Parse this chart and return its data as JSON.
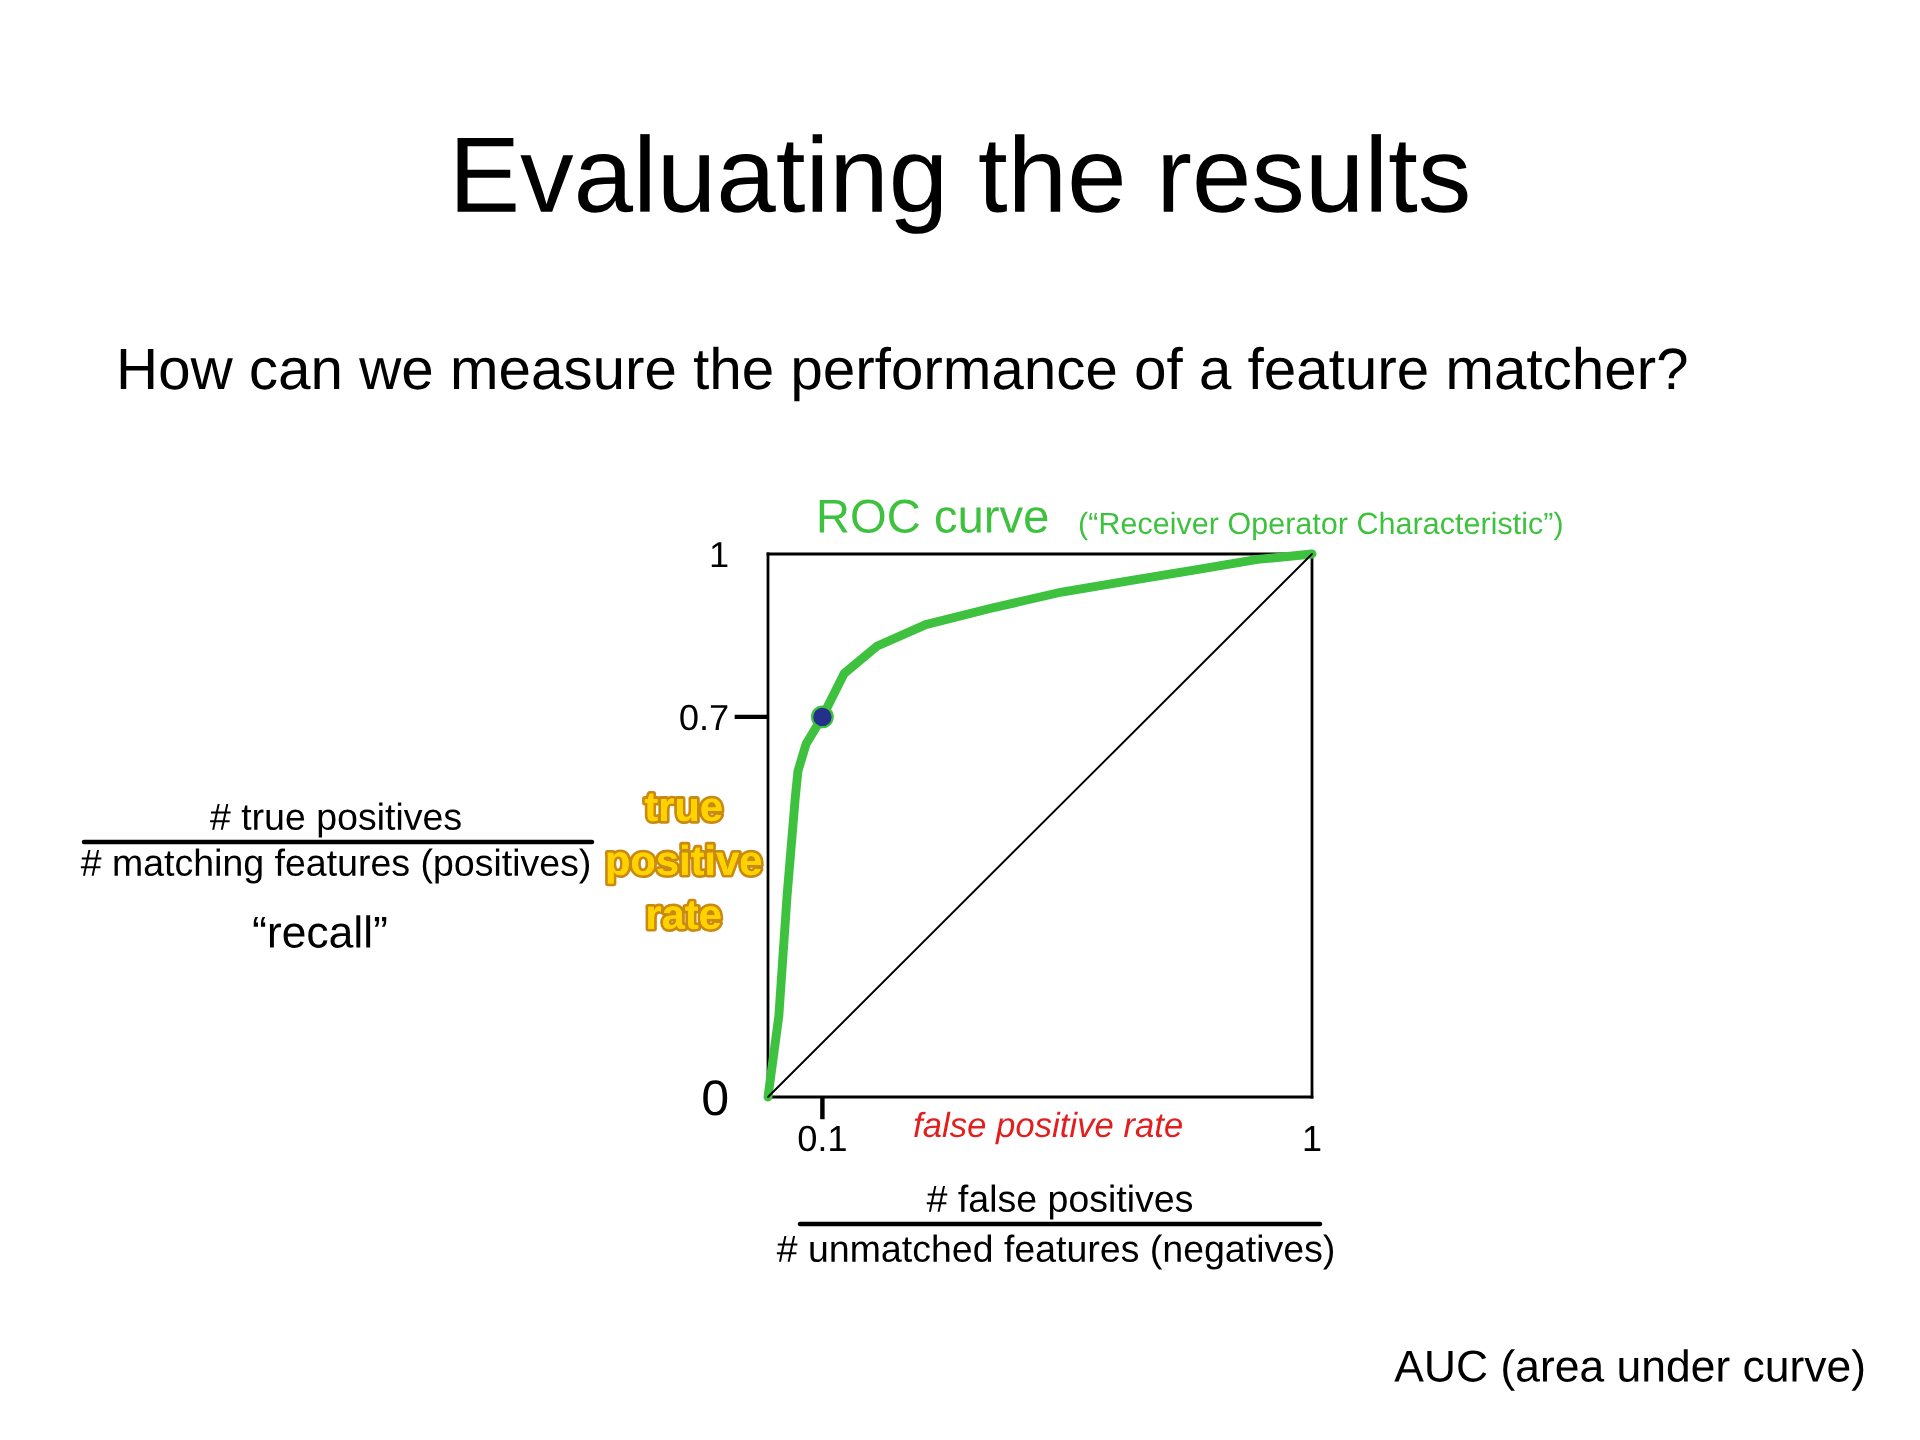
{
  "chart_data": {
    "type": "line",
    "title": "Evaluating the results",
    "subtitle": "How can we measure the performance of a feature matcher?",
    "xlabel": "false positive rate",
    "ylabel": "true positive rate",
    "annotations": [
      "(“Receiver Operator Characteristic”)",
      "# true positives",
      "# matching features (positives)",
      "“recall”",
      "# false positives",
      "# unmatched features (negatives)",
      "AUC (area under curve)"
    ],
    "series": [
      {
        "name": "ROC curve",
        "color": "#3ec13e",
        "x": [
          0,
          0.02,
          0.035,
          0.05,
          0.055,
          0.07,
          0.1,
          0.14,
          0.2,
          0.29,
          0.41,
          0.54,
          0.66,
          0.78,
          0.9,
          1
        ],
        "values": [
          0,
          0.15,
          0.37,
          0.55,
          0.6,
          0.65,
          0.7,
          0.78,
          0.83,
          0.87,
          0.9,
          0.93,
          0.95,
          0.97,
          0.99,
          1
        ]
      },
      {
        "color": "#000000",
        "x": [
          0,
          1
        ],
        "values": [
          0,
          1
        ]
      },
      {
        "type": "scatter",
        "color": "#24308a",
        "marker": "circle",
        "x": [
          0.1
        ],
        "values": [
          0.7
        ]
      }
    ],
    "xlim": [
      0,
      1
    ],
    "ylim": [
      0,
      1
    ],
    "xticks": [
      0.1,
      1
    ],
    "yticks": [
      0,
      0.7,
      1
    ]
  }
}
